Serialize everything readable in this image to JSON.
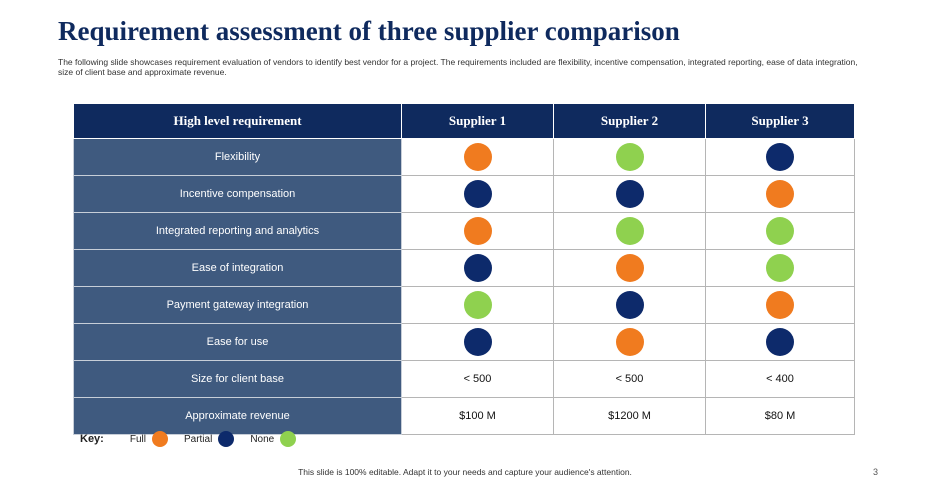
{
  "header": {
    "title": "Requirement assessment of three supplier comparison",
    "subtitle": "The following slide showcases requirement evaluation of vendors to identify best vendor for a project. The requirements included are flexibility, incentive compensation, integrated reporting, ease of data integration, size of client base and approximate revenue."
  },
  "table": {
    "columns": [
      "High level requirement",
      "Supplier 1",
      "Supplier 2",
      "Supplier 3"
    ],
    "rows": [
      [
        "Flexibility",
        {
          "color": "#f07b1f"
        },
        {
          "color": "#8fd14f"
        },
        {
          "color": "#0d2a6b"
        }
      ],
      [
        "Incentive compensation",
        {
          "color": "#0d2a6b"
        },
        {
          "color": "#0d2a6b"
        },
        {
          "color": "#f07b1f"
        }
      ],
      [
        "Integrated reporting and analytics",
        {
          "color": "#f07b1f"
        },
        {
          "color": "#8fd14f"
        },
        {
          "color": "#8fd14f"
        }
      ],
      [
        "Ease of integration",
        {
          "color": "#0d2a6b"
        },
        {
          "color": "#f07b1f"
        },
        {
          "color": "#8fd14f"
        }
      ],
      [
        "Payment gateway integration",
        {
          "color": "#8fd14f"
        },
        {
          "color": "#0d2a6b"
        },
        {
          "color": "#f07b1f"
        }
      ],
      [
        "Ease for use",
        {
          "color": "#0d2a6b"
        },
        {
          "color": "#f07b1f"
        },
        {
          "color": "#0d2a6b"
        }
      ],
      [
        "Size for client base",
        "< 500",
        "< 500",
        "< 400"
      ],
      [
        "Approximate revenue",
        "$100 M",
        "$1200 M",
        "$80 M"
      ]
    ]
  },
  "key": {
    "title": "Key:",
    "items": [
      {
        "label": "Full",
        "color": "#f07b1f"
      },
      {
        "label": "Partial",
        "color": "#0d2a6b"
      },
      {
        "label": "None",
        "color": "#8fd14f"
      }
    ]
  },
  "footer": "This slide is 100% editable. Adapt it to your needs and capture your audience's attention.",
  "page_number": "3"
}
